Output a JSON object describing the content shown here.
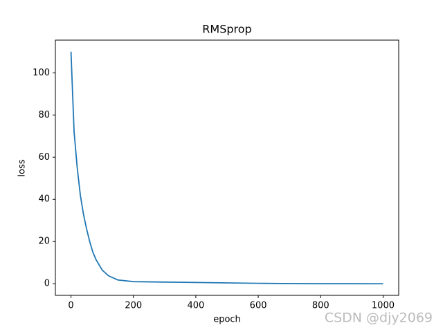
{
  "chart_data": {
    "type": "line",
    "title": "RMSprop",
    "x_label": "epoch",
    "y_label": "loss",
    "x": [
      0,
      10,
      20,
      30,
      40,
      50,
      60,
      70,
      80,
      100,
      120,
      150,
      200,
      300,
      400,
      500,
      600,
      700,
      800,
      900,
      1000
    ],
    "values": [
      110,
      72,
      55,
      42,
      33,
      26,
      20,
      15,
      11.5,
      6.5,
      3.8,
      1.8,
      1.0,
      0.8,
      0.6,
      0.4,
      0.2,
      0.05,
      0.02,
      0.01,
      0
    ],
    "color": "#1f77b4",
    "xlim": [
      -50,
      1050
    ],
    "xticks": [
      0,
      200,
      400,
      600,
      800,
      1000
    ],
    "ylim": [
      -5.5,
      115.5
    ],
    "yticks": [
      0,
      20,
      40,
      60,
      80,
      100
    ],
    "grid": false,
    "watermark": "CSDN @djy2069"
  }
}
